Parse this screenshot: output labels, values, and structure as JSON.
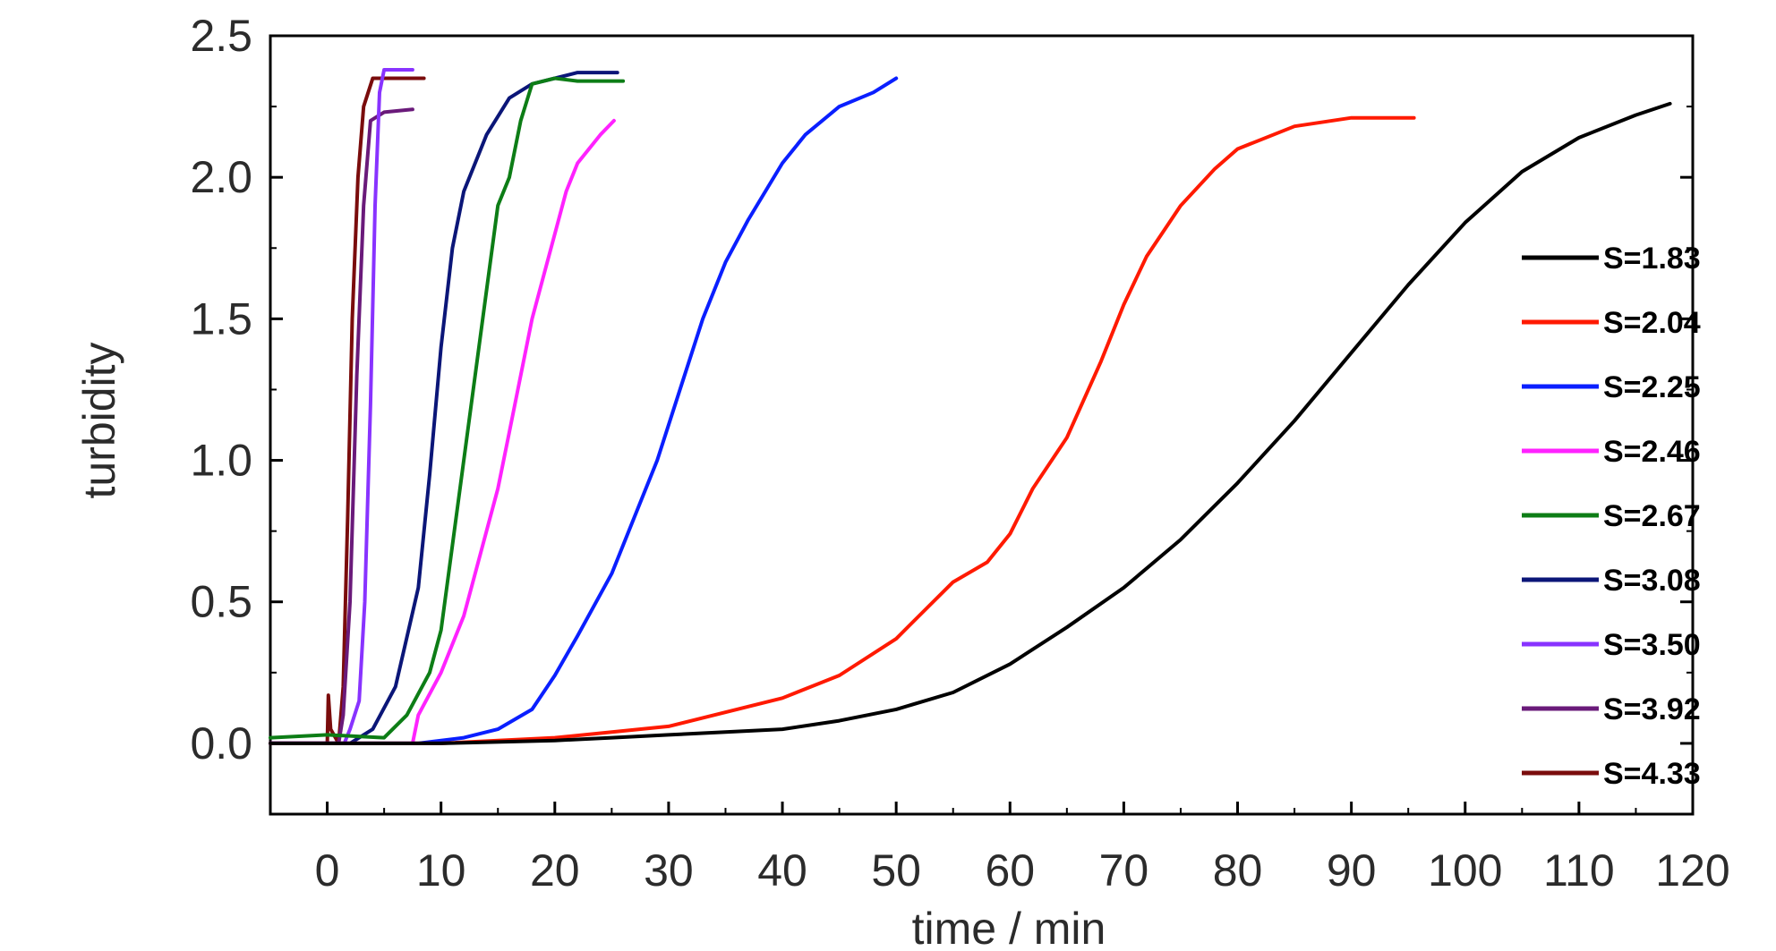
{
  "chart_data": {
    "type": "line",
    "title": "",
    "xlabel": "time / min",
    "ylabel": "turbidity",
    "xlim": [
      -5,
      120
    ],
    "ylim": [
      -0.25,
      2.5
    ],
    "x_ticks": [
      "0",
      "10",
      "20",
      "30",
      "40",
      "50",
      "60",
      "70",
      "80",
      "90",
      "100",
      "110",
      "120"
    ],
    "y_ticks": [
      "0.0",
      "0.5",
      "1.0",
      "1.5",
      "2.0",
      "2.5"
    ],
    "legend_position": "right",
    "grid": false,
    "series": [
      {
        "name": "S=1.83",
        "color": "#000000",
        "points": [
          [
            -5,
            0
          ],
          [
            0,
            0
          ],
          [
            10,
            0.0
          ],
          [
            20,
            0.01
          ],
          [
            25,
            0.02
          ],
          [
            30,
            0.03
          ],
          [
            35,
            0.04
          ],
          [
            40,
            0.05
          ],
          [
            45,
            0.08
          ],
          [
            50,
            0.12
          ],
          [
            55,
            0.18
          ],
          [
            60,
            0.28
          ],
          [
            65,
            0.41
          ],
          [
            70,
            0.55
          ],
          [
            75,
            0.72
          ],
          [
            80,
            0.92
          ],
          [
            85,
            1.14
          ],
          [
            90,
            1.38
          ],
          [
            95,
            1.62
          ],
          [
            100,
            1.84
          ],
          [
            105,
            2.02
          ],
          [
            110,
            2.14
          ],
          [
            115,
            2.22
          ],
          [
            118,
            2.26
          ]
        ]
      },
      {
        "name": "S=2.04",
        "color": "#ff1a00",
        "points": [
          [
            -5,
            0
          ],
          [
            0,
            0
          ],
          [
            10,
            0.0
          ],
          [
            20,
            0.02
          ],
          [
            30,
            0.06
          ],
          [
            40,
            0.16
          ],
          [
            45,
            0.24
          ],
          [
            50,
            0.37
          ],
          [
            52,
            0.45
          ],
          [
            55,
            0.57
          ],
          [
            58,
            0.64
          ],
          [
            60,
            0.74
          ],
          [
            62,
            0.9
          ],
          [
            65,
            1.08
          ],
          [
            68,
            1.35
          ],
          [
            70,
            1.55
          ],
          [
            72,
            1.72
          ],
          [
            75,
            1.9
          ],
          [
            78,
            2.03
          ],
          [
            80,
            2.1
          ],
          [
            85,
            2.18
          ],
          [
            90,
            2.21
          ],
          [
            95.5,
            2.21
          ]
        ]
      },
      {
        "name": "S=2.25",
        "color": "#0a1fff",
        "points": [
          [
            -5,
            0
          ],
          [
            0,
            0
          ],
          [
            8,
            0.0
          ],
          [
            12,
            0.02
          ],
          [
            15,
            0.05
          ],
          [
            18,
            0.12
          ],
          [
            20,
            0.24
          ],
          [
            22,
            0.38
          ],
          [
            25,
            0.6
          ],
          [
            27,
            0.8
          ],
          [
            29,
            1.0
          ],
          [
            31,
            1.25
          ],
          [
            33,
            1.5
          ],
          [
            35,
            1.7
          ],
          [
            37,
            1.85
          ],
          [
            40,
            2.05
          ],
          [
            42,
            2.15
          ],
          [
            45,
            2.25
          ],
          [
            48,
            2.3
          ],
          [
            50,
            2.35
          ]
        ]
      },
      {
        "name": "S=2.46",
        "color": "#ff22ff",
        "points": [
          [
            -5,
            0
          ],
          [
            7.5,
            0
          ],
          [
            8,
            0.1
          ],
          [
            10,
            0.25
          ],
          [
            12,
            0.45
          ],
          [
            13,
            0.6
          ],
          [
            14,
            0.75
          ],
          [
            15,
            0.9
          ],
          [
            16,
            1.1
          ],
          [
            17,
            1.3
          ],
          [
            18,
            1.5
          ],
          [
            19,
            1.65
          ],
          [
            20,
            1.8
          ],
          [
            21,
            1.95
          ],
          [
            22,
            2.05
          ],
          [
            24,
            2.15
          ],
          [
            25.2,
            2.2
          ]
        ]
      },
      {
        "name": "S=2.67",
        "color": "#0d7d16",
        "points": [
          [
            -5,
            0.02
          ],
          [
            0,
            0.03
          ],
          [
            5,
            0.02
          ],
          [
            7,
            0.1
          ],
          [
            9,
            0.25
          ],
          [
            10,
            0.4
          ],
          [
            11,
            0.7
          ],
          [
            12,
            1.0
          ],
          [
            13,
            1.3
          ],
          [
            14,
            1.6
          ],
          [
            15,
            1.9
          ],
          [
            16,
            2.0
          ],
          [
            17,
            2.2
          ],
          [
            18,
            2.33
          ],
          [
            20,
            2.35
          ],
          [
            22,
            2.34
          ],
          [
            26,
            2.34
          ]
        ]
      },
      {
        "name": "S=3.08",
        "color": "#0b1678",
        "points": [
          [
            -5,
            0
          ],
          [
            1,
            0
          ],
          [
            2,
            0.0
          ],
          [
            4,
            0.05
          ],
          [
            6,
            0.2
          ],
          [
            8,
            0.55
          ],
          [
            9,
            0.95
          ],
          [
            10,
            1.4
          ],
          [
            11,
            1.75
          ],
          [
            12,
            1.95
          ],
          [
            14,
            2.15
          ],
          [
            16,
            2.28
          ],
          [
            18,
            2.33
          ],
          [
            20,
            2.35
          ],
          [
            22,
            2.37
          ],
          [
            25.5,
            2.37
          ]
        ]
      },
      {
        "name": "S=3.50",
        "color": "#8833ff",
        "points": [
          [
            -5,
            0
          ],
          [
            1.5,
            0
          ],
          [
            2,
            0.05
          ],
          [
            2.8,
            0.15
          ],
          [
            3.3,
            0.5
          ],
          [
            3.8,
            1.2
          ],
          [
            4.2,
            1.9
          ],
          [
            4.6,
            2.3
          ],
          [
            5,
            2.38
          ],
          [
            6,
            2.38
          ],
          [
            7.5,
            2.38
          ]
        ]
      },
      {
        "name": "S=3.92",
        "color": "#6a1a7a",
        "points": [
          [
            -5,
            0
          ],
          [
            1,
            0
          ],
          [
            1.4,
            0.1
          ],
          [
            2,
            0.5
          ],
          [
            2.6,
            1.3
          ],
          [
            3.2,
            1.9
          ],
          [
            3.8,
            2.2
          ],
          [
            5,
            2.23
          ],
          [
            7.5,
            2.24
          ]
        ]
      },
      {
        "name": "S=4.33",
        "color": "#7a0c0c",
        "points": [
          [
            -5,
            0
          ],
          [
            0,
            0
          ],
          [
            0.1,
            0.17
          ],
          [
            0.3,
            0.05
          ],
          [
            1,
            0
          ],
          [
            1.4,
            0.2
          ],
          [
            1.8,
            0.8
          ],
          [
            2.2,
            1.5
          ],
          [
            2.7,
            2.0
          ],
          [
            3.2,
            2.25
          ],
          [
            4,
            2.35
          ],
          [
            8.5,
            2.35
          ]
        ]
      }
    ]
  }
}
